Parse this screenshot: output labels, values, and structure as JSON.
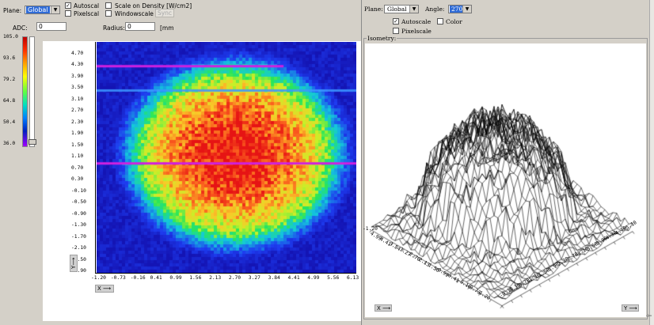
{
  "left_panel": {
    "plane_label": "Plane:",
    "plane_value": "Global",
    "autoscale_label": "Autoscal",
    "autoscale_checked": true,
    "pixelscale_label": "Pixelscal",
    "pixelscale_checked": false,
    "scale_density_label": "Scale on Density [W/cm2]",
    "windowscale_label": "Windowscale",
    "sync_label": "Sync",
    "adc_label": "ADC:",
    "adc_value": "0",
    "radius_label": "Radius:",
    "radius_value": "0",
    "radius_unit": "[mm"
  },
  "colorbar": {
    "ticks": [
      "105.0",
      "93.6",
      "79.2",
      "64.8",
      "50.4",
      "36.0"
    ]
  },
  "heatmap": {
    "y_ticks": [
      "4.70",
      "4.30",
      "3.90",
      "3.50",
      "3.10",
      "2.70",
      "2.30",
      "1.90",
      "1.50",
      "1.10",
      "0.70",
      "0.30",
      "-0.10",
      "-0.50",
      "-0.90",
      "-1.30",
      "-1.70",
      "-2.10",
      "-2.50",
      "-2.90"
    ],
    "x_ticks": [
      "-1.20",
      "-0.73",
      "-0.16",
      "0.41",
      "0.99",
      "1.56",
      "2.13",
      "2.70",
      "3.27",
      "3.84",
      "4.41",
      "4.99",
      "5.56",
      "6.13"
    ],
    "x_axis_button": "X",
    "y_axis_button": "Y"
  },
  "right_panel": {
    "plane_label": "Plane:",
    "plane_value": "Global",
    "angle_label": "Angle:",
    "angle_value": "270?",
    "autoscale_label": "Autoscale",
    "autoscale_checked": true,
    "color_label": "Color",
    "color_checked": false,
    "pixelscale_label": "Pixelscale",
    "pixelscale_checked": false,
    "isometry_label": "Isometry:",
    "x_axis_button": "X",
    "y_axis_button": "Y",
    "corner_tick": "-1.20",
    "left_edge_ticks": [
      "4.99",
      "4.41",
      "3.84",
      "3.27",
      "2.70",
      "2.13",
      "1.56",
      "0.99",
      "0.41",
      "-0.16",
      "-0.73",
      "-1.20"
    ],
    "right_edge_ticks": [
      "-0.10",
      "0.30",
      "0.70",
      "1.10",
      "1.50",
      "1.90",
      "2.30",
      "2.70",
      "3.10",
      "3.50",
      "3.90",
      "4.30",
      "4.70",
      "5.10"
    ]
  },
  "chart_data": {
    "type": "heatmap",
    "xlim": [
      -1.2,
      6.13
    ],
    "ylim": [
      -2.9,
      4.7
    ],
    "colorbar_range": [
      36.0,
      105.0
    ],
    "colors": {
      "background": "#1414b4",
      "low": "#2030e0",
      "mid": "#30e0a0",
      "high_mid": "#c8f030",
      "peak": "#f03020",
      "bad_row": "#d020e0"
    },
    "spot_center_x": 2.7,
    "spot_center_y": 1.0,
    "spot_radius": 2.8,
    "horizontal_artifact_rows_y": [
      3.9,
      3.1,
      0.7
    ]
  }
}
